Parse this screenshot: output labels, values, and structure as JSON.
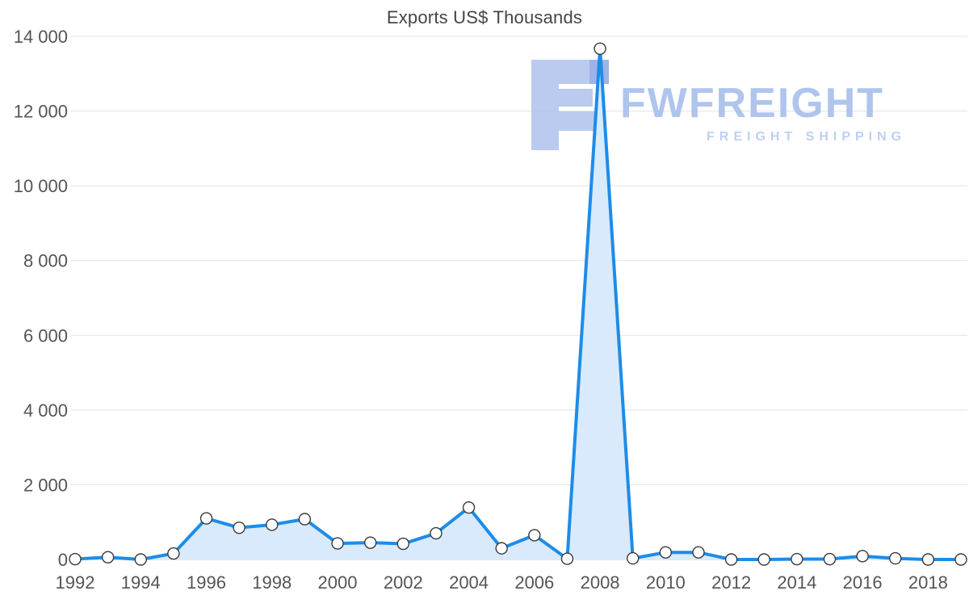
{
  "chart_data": {
    "type": "area",
    "title": "Exports US$ Thousands",
    "xlabel": "",
    "ylabel": "",
    "x": [
      1992,
      1993,
      1994,
      1995,
      1996,
      1997,
      1998,
      1999,
      2000,
      2001,
      2002,
      2003,
      2004,
      2005,
      2006,
      2007,
      2008,
      2009,
      2010,
      2011,
      2012,
      2013,
      2014,
      2015,
      2016,
      2017,
      2018,
      2019
    ],
    "values": [
      10,
      60,
      0,
      160,
      1100,
      850,
      930,
      1080,
      430,
      450,
      420,
      700,
      1390,
      300,
      650,
      20,
      13670,
      30,
      190,
      190,
      0,
      0,
      10,
      10,
      90,
      30,
      0,
      0
    ],
    "ylim": [
      0,
      14000
    ],
    "grid": true,
    "legend": "none",
    "yticks": [
      {
        "value": 0,
        "label": "0"
      },
      {
        "value": 2000,
        "label": "2 000"
      },
      {
        "value": 4000,
        "label": "4 000"
      },
      {
        "value": 6000,
        "label": "6 000"
      },
      {
        "value": 8000,
        "label": "8 000"
      },
      {
        "value": 10000,
        "label": "10 000"
      },
      {
        "value": 12000,
        "label": "12 000"
      },
      {
        "value": 14000,
        "label": "14 000"
      }
    ],
    "xticks": [
      {
        "value": 1992,
        "label": "1992"
      },
      {
        "value": 1994,
        "label": "1994"
      },
      {
        "value": 1996,
        "label": "1996"
      },
      {
        "value": 1998,
        "label": "1998"
      },
      {
        "value": 2000,
        "label": "2000"
      },
      {
        "value": 2002,
        "label": "2002"
      },
      {
        "value": 2004,
        "label": "2004"
      },
      {
        "value": 2006,
        "label": "2006"
      },
      {
        "value": 2008,
        "label": "2008"
      },
      {
        "value": 2010,
        "label": "2010"
      },
      {
        "value": 2012,
        "label": "2012"
      },
      {
        "value": 2014,
        "label": "2014"
      },
      {
        "value": 2016,
        "label": "2016"
      },
      {
        "value": 2018,
        "label": "2018"
      }
    ],
    "colors": {
      "line": "#1e8ce8",
      "fill": "#d9eafc",
      "marker_fill": "#ffffff",
      "marker_stroke": "#3a3a3a",
      "grid": "#e3e3e3",
      "axis_line": "#cccccc",
      "axis_text": "#555555"
    }
  },
  "watermark": {
    "brand": "FWFREIGHT",
    "tagline": "FREIGHT SHIPPING",
    "brand_color": "#a7bfec",
    "tagline_color": "#b7ccf2",
    "logo_color": "#b3c6ee",
    "logo_accent_color": "#93ace4"
  }
}
